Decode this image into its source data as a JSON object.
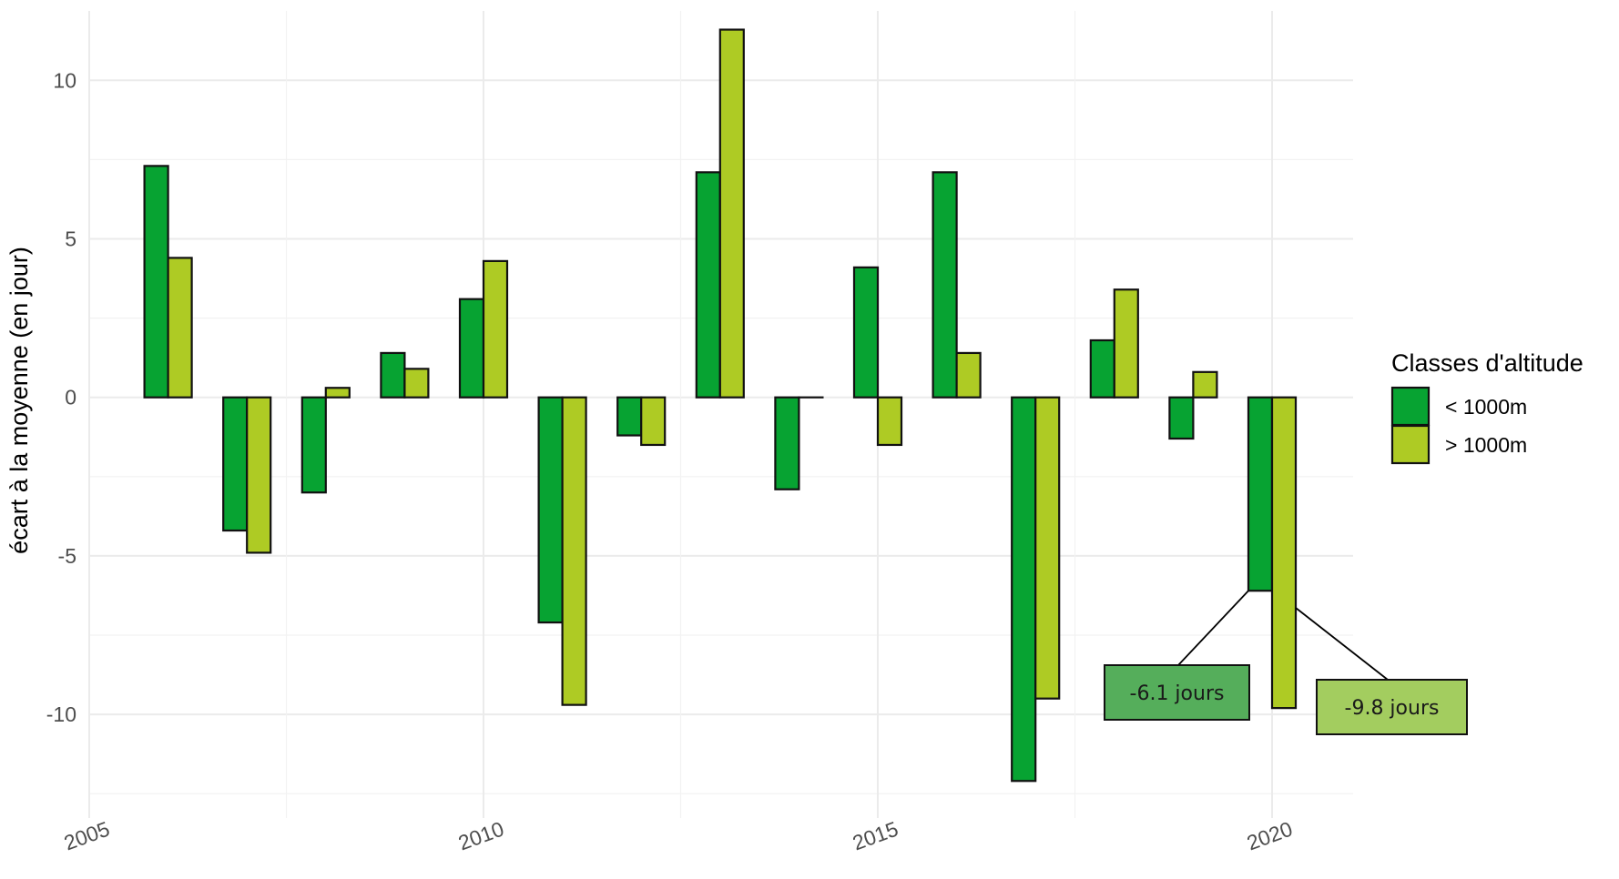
{
  "chart_data": {
    "type": "bar",
    "title": "",
    "xlabel": "",
    "ylabel": "écart à la moyenne (en jour)",
    "x": [
      2006,
      2007,
      2008,
      2009,
      2010,
      2011,
      2012,
      2013,
      2014,
      2015,
      2016,
      2017,
      2018,
      2019,
      2020
    ],
    "series": [
      {
        "name": "< 1000m",
        "color": "#07a332",
        "values": [
          7.3,
          -4.2,
          -3.0,
          1.4,
          3.1,
          -7.1,
          -1.2,
          7.1,
          -2.9,
          4.1,
          7.1,
          -12.1,
          1.8,
          -1.3,
          -6.1
        ]
      },
      {
        "name": "> 1000m",
        "color": "#aecb24",
        "values": [
          4.4,
          -4.9,
          0.3,
          0.9,
          4.3,
          -9.7,
          -1.5,
          11.6,
          0.0,
          -1.5,
          1.4,
          -9.5,
          3.4,
          0.8,
          -9.8
        ]
      }
    ],
    "xlim": [
      2005,
      2021
    ],
    "ylim": [
      -13.3,
      12.2
    ],
    "x_ticks": [
      "2005",
      "2010",
      "2015",
      "2020"
    ],
    "y_ticks": [
      "10",
      "5",
      "0",
      "-5",
      "-10"
    ],
    "x_tick_values": [
      2005,
      2010,
      2015,
      2020
    ],
    "y_tick_values": [
      10,
      5,
      0,
      -5,
      -10
    ],
    "grid": true,
    "legend_position": "right",
    "legend_title": "Classes d'altitude",
    "annotations": [
      {
        "text": "-6.1 jours",
        "x": 2020,
        "series": "< 1000m",
        "value": -6.1,
        "fill": "#55ae5b"
      },
      {
        "text": "-9.8 jours",
        "x": 2020,
        "series": "> 1000m",
        "value": -9.8,
        "fill": "#a3cd5f"
      }
    ]
  },
  "legend": {
    "title": "Classes d'altitude",
    "items": [
      {
        "label": "< 1000m",
        "color": "#07a332"
      },
      {
        "label": "> 1000m",
        "color": "#aecb24"
      }
    ]
  },
  "axis": {
    "y_title": "écart à la moyenne (en jour)"
  }
}
